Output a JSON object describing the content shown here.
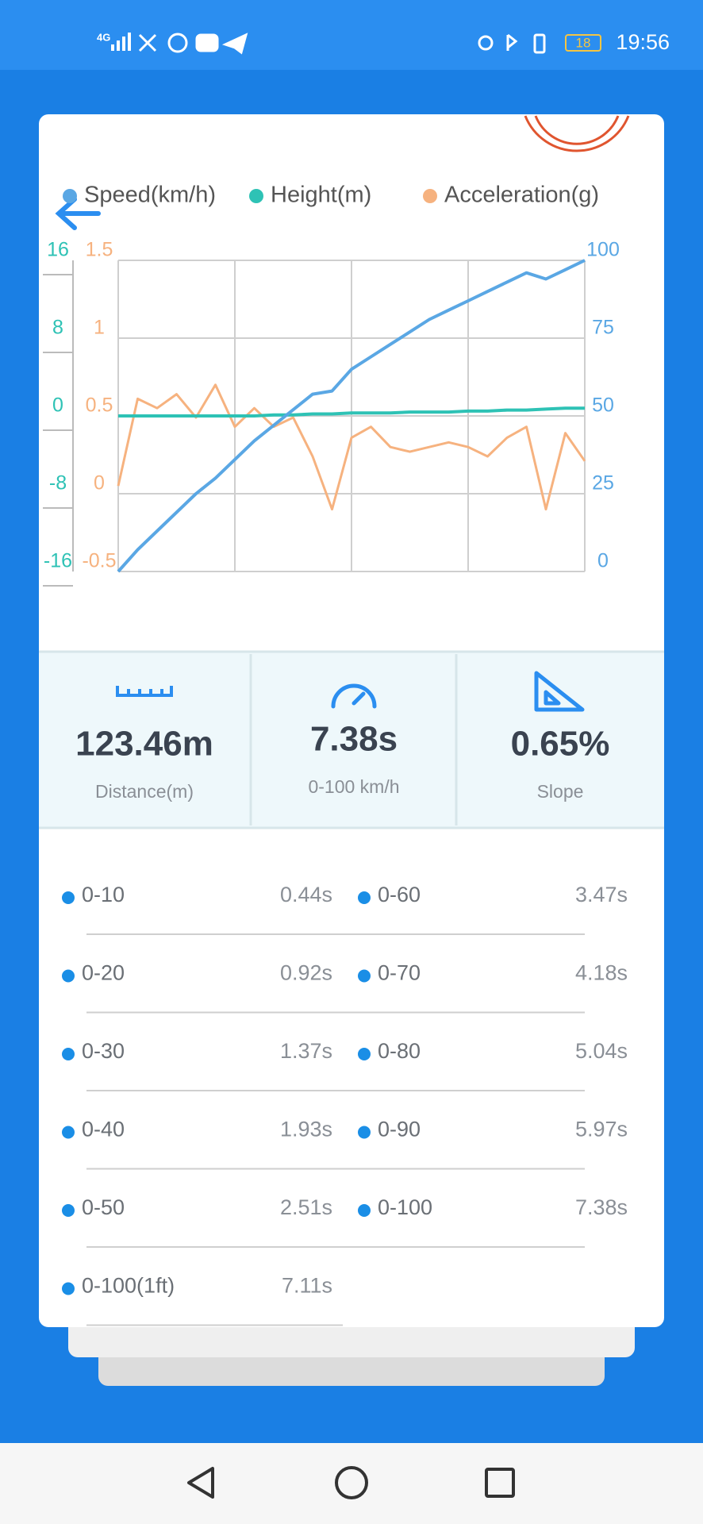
{
  "status_bar": {
    "network": "4G",
    "battery": "18",
    "time": "19:56"
  },
  "chart_data": {
    "type": "line",
    "x": [
      0,
      1,
      2,
      3,
      4,
      5,
      6,
      7,
      8,
      9,
      10,
      11,
      12,
      13,
      14,
      15,
      16,
      17,
      18,
      19,
      20,
      21,
      22,
      23,
      24
    ],
    "xlim": [
      0,
      24
    ],
    "series": [
      {
        "name": "Speed(km/h)",
        "color": "#5aa7e4",
        "axis": "y2",
        "values": [
          0,
          7,
          13,
          19,
          25,
          30,
          36,
          42,
          47,
          52,
          57,
          58,
          65,
          69,
          73,
          77,
          81,
          84,
          87,
          90,
          93,
          96,
          94,
          97,
          100
        ]
      },
      {
        "name": "Height(m)",
        "color": "#2ec2b5",
        "axis": "y",
        "values": [
          0,
          0,
          0,
          0,
          0,
          0,
          0,
          0,
          0.1,
          0.1,
          0.2,
          0.2,
          0.3,
          0.3,
          0.3,
          0.4,
          0.4,
          0.4,
          0.5,
          0.5,
          0.6,
          0.6,
          0.7,
          0.8,
          0.8
        ]
      },
      {
        "name": "Acceleration(g)",
        "color": "#f6b27f",
        "axis": "y3",
        "values": [
          0.05,
          0.61,
          0.55,
          0.64,
          0.49,
          0.7,
          0.43,
          0.55,
          0.43,
          0.49,
          0.24,
          -0.1,
          0.36,
          0.43,
          0.3,
          0.27,
          0.3,
          0.33,
          0.3,
          0.24,
          0.36,
          0.43,
          -0.1,
          0.39,
          0.21
        ]
      }
    ],
    "ylim": [
      -16,
      16
    ],
    "yticks": [
      -16,
      -8,
      0,
      8,
      16
    ],
    "y3lim": [
      -0.5,
      1.5
    ],
    "y3ticks": [
      -0.5,
      0,
      0.5,
      1,
      1.5
    ],
    "y2lim": [
      0,
      100
    ],
    "y2ticks": [
      0,
      25,
      50,
      75,
      100
    ],
    "grid": true
  },
  "stats": [
    {
      "value": "123.46m",
      "label": "Distance(m)"
    },
    {
      "value": "7.38s",
      "label": "0-100 km/h"
    },
    {
      "value": "0.65%",
      "label": "Slope"
    }
  ],
  "splits": [
    {
      "label": "0-10",
      "time": "0.44s"
    },
    {
      "label": "0-20",
      "time": "0.92s"
    },
    {
      "label": "0-30",
      "time": "1.37s"
    },
    {
      "label": "0-40",
      "time": "1.93s"
    },
    {
      "label": "0-50",
      "time": "2.51s"
    },
    {
      "label": "0-60",
      "time": "3.47s"
    },
    {
      "label": "0-70",
      "time": "4.18s"
    },
    {
      "label": "0-80",
      "time": "5.04s"
    },
    {
      "label": "0-90",
      "time": "5.97s"
    },
    {
      "label": "0-100",
      "time": "7.38s"
    },
    {
      "label": "0-100(1ft)",
      "time": "7.11s"
    }
  ]
}
